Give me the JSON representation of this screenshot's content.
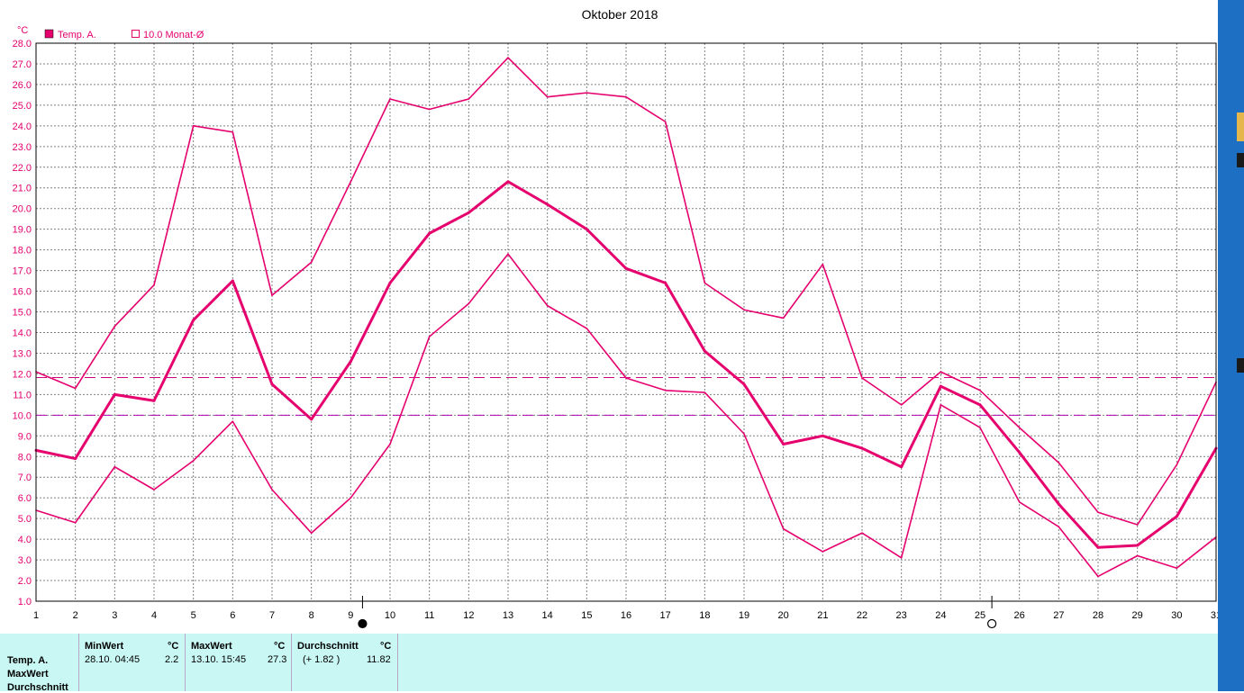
{
  "chart_data": {
    "type": "line",
    "title": "Oktober 2018",
    "unit": "°C",
    "ylim": [
      1.0,
      28.0
    ],
    "yticks": [
      "28.0",
      "27.0",
      "26.0",
      "25.0",
      "24.0",
      "23.0",
      "22.0",
      "21.0",
      "20.0",
      "19.0",
      "18.0",
      "17.0",
      "16.0",
      "15.0",
      "14.0",
      "13.0",
      "12.0",
      "11.0",
      "10.0",
      "9.0",
      "8.0",
      "7.0",
      "6.0",
      "5.0",
      "4.0",
      "3.0",
      "2.0",
      "1.0"
    ],
    "x": [
      1,
      2,
      3,
      4,
      5,
      6,
      7,
      8,
      9,
      10,
      11,
      12,
      13,
      14,
      15,
      16,
      17,
      18,
      19,
      20,
      21,
      22,
      23,
      24,
      25,
      26,
      27,
      28,
      29,
      30,
      31
    ],
    "xtick_labels": [
      "1",
      "2",
      "3",
      "4",
      "5",
      "6",
      "7",
      "8",
      "9",
      "10",
      "11",
      "12",
      "13",
      "14",
      "15",
      "16",
      "17",
      "18",
      "19",
      "20",
      "21",
      "22",
      "23",
      "24",
      "25",
      "26",
      "27",
      "28",
      "29",
      "30",
      "31"
    ],
    "grid": true,
    "legend": [
      {
        "label": "Temp. A.",
        "style": "filled-box"
      },
      {
        "label": "10.0 Monat-Ø",
        "style": "empty-box"
      }
    ],
    "series": [
      {
        "name": "Temp. A.",
        "role": "max",
        "values": [
          12.1,
          11.3,
          14.3,
          16.3,
          24.0,
          23.7,
          15.8,
          17.4,
          21.3,
          25.3,
          24.8,
          25.3,
          27.3,
          25.4,
          25.6,
          25.4,
          24.2,
          16.4,
          15.1,
          14.7,
          17.3,
          11.8,
          10.5,
          12.1,
          11.2,
          9.4,
          7.7,
          5.3,
          4.7,
          7.6,
          11.6
        ]
      },
      {
        "name": "Temp. A.",
        "role": "mean",
        "values": [
          8.3,
          7.9,
          11.0,
          10.7,
          14.6,
          16.5,
          11.5,
          9.8,
          12.6,
          16.4,
          18.8,
          19.8,
          21.3,
          20.2,
          19.0,
          17.1,
          16.4,
          13.1,
          11.5,
          8.6,
          9.0,
          8.4,
          7.5,
          11.4,
          10.5,
          8.2,
          5.7,
          3.6,
          3.7,
          5.1,
          8.4
        ]
      },
      {
        "name": "Temp. A.",
        "role": "min",
        "values": [
          5.4,
          4.8,
          7.5,
          6.4,
          7.8,
          9.7,
          6.4,
          4.3,
          6.0,
          8.6,
          13.8,
          15.4,
          17.8,
          15.3,
          14.2,
          11.8,
          11.2,
          11.1,
          9.1,
          4.5,
          3.4,
          4.3,
          3.1,
          10.5,
          9.4,
          5.8,
          4.6,
          2.2,
          3.2,
          2.6,
          4.1
        ]
      }
    ],
    "reference_lines": [
      {
        "value": 11.82,
        "style": "dashed"
      },
      {
        "value": 10.0,
        "style": "dashed"
      }
    ],
    "moon_phases": [
      {
        "day": 9,
        "symbol": "●"
      },
      {
        "day": 25,
        "symbol": "○"
      }
    ],
    "colors": {
      "series": "#e6006e",
      "ref_line": "#d0007a",
      "ref_line_month": "#b000b0",
      "grid": "#808080"
    }
  },
  "stats": {
    "row_labels": [
      "Temp. A.",
      "MaxWert",
      "Durchschnitt"
    ],
    "minwert": {
      "label": "MinWert",
      "unit": "°C",
      "date": "28.10.  04:45",
      "value": "2.2"
    },
    "maxwert": {
      "label": "MaxWert",
      "unit": "°C",
      "date": "13.10.  15:45",
      "value": "27.3"
    },
    "durchschnitt": {
      "label": "Durchschnitt",
      "unit": "°C",
      "delta": "(+ 1.82 )",
      "value": "11.82"
    }
  },
  "colors": {
    "panel_bg": "#c9f7f4",
    "desktop_strip": "#1d6fc4"
  }
}
